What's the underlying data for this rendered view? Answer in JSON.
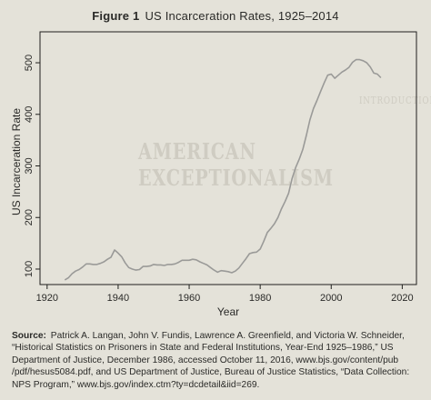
{
  "figure": {
    "label": "Figure 1",
    "title": "US Incarceration Rates, 1925–2014"
  },
  "bleed_through": {
    "line1": "AMERICAN EXCEPTIONALISM",
    "line2": "INTRODUCTION"
  },
  "chart_data": {
    "type": "line",
    "title": "US Incarceration Rates, 1925–2014",
    "xlabel": "Year",
    "ylabel": "US Incarceration Rate",
    "xlim": [
      1918,
      2024
    ],
    "ylim": [
      70,
      560
    ],
    "x_ticks": [
      1920,
      1940,
      1960,
      1980,
      2000,
      2020
    ],
    "y_ticks": [
      100,
      200,
      300,
      400,
      500
    ],
    "grid": false,
    "legend": "none",
    "line_color": "#9a9a98",
    "series": [
      {
        "x": [
          1925,
          1926,
          1927,
          1928,
          1929,
          1930,
          1931,
          1932,
          1933,
          1934,
          1935,
          1936,
          1937,
          1938,
          1939,
          1940,
          1941,
          1942,
          1943,
          1944,
          1945,
          1946,
          1947,
          1948,
          1949,
          1950,
          1951,
          1952,
          1953,
          1954,
          1955,
          1956,
          1957,
          1958,
          1959,
          1960,
          1961,
          1962,
          1963,
          1964,
          1965,
          1966,
          1967,
          1968,
          1969,
          1970,
          1971,
          1972,
          1973,
          1974,
          1975,
          1976,
          1977,
          1978,
          1979,
          1980,
          1981,
          1982,
          1983,
          1984,
          1985,
          1986,
          1987,
          1988,
          1989,
          1990,
          1991,
          1992,
          1993,
          1994,
          1995,
          1996,
          1997,
          1998,
          1999,
          2000,
          2001,
          2002,
          2003,
          2004,
          2005,
          2006,
          2007,
          2008,
          2009,
          2010,
          2011,
          2012,
          2013,
          2014
        ],
        "values": [
          79,
          83,
          91,
          96,
          99,
          104,
          110,
          110,
          109,
          109,
          111,
          114,
          119,
          123,
          137,
          131,
          124,
          112,
          103,
          100,
          98,
          99,
          105,
          105,
          106,
          109,
          108,
          108,
          107,
          109,
          109,
          110,
          113,
          117,
          117,
          117,
          119,
          118,
          114,
          111,
          108,
          103,
          98,
          94,
          97,
          96,
          95,
          93,
          96,
          102,
          111,
          120,
          130,
          132,
          133,
          139,
          154,
          171,
          179,
          188,
          200,
          217,
          231,
          247,
          276,
          297,
          313,
          332,
          359,
          389,
          411,
          427,
          444,
          461,
          476,
          478,
          470,
          476,
          482,
          486,
          491,
          501,
          506,
          506,
          504,
          500,
          492,
          480,
          478,
          471
        ]
      }
    ]
  },
  "source": {
    "label": "Source:",
    "text": "Patrick A. Langan, John V. Fundis, Lawrence A. Greenfield, and Victoria W. Schneider, “Historical Statistics on Prisoners in State and Federal Institutions, Year-End 1925–1986,” US Department of Justice, December 1986, accessed October 11, 2016, www.bjs.gov/content/pub /pdf/hesus5084.pdf, and US Department of Justice, Bureau of Justice Statistics, “Data Collection: NPS Program,” www.bjs.gov/index.ctm?ty=dcdetail&iid=269."
  }
}
